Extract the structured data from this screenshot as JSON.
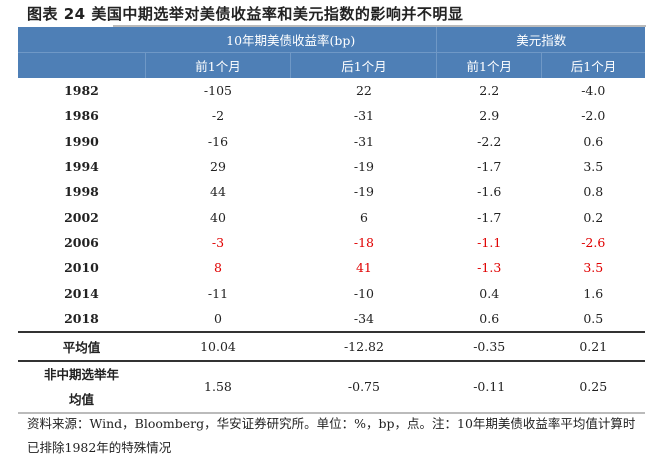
{
  "title": "图表 24 美国中期选举对美债收益率和美元指数的影响并不明显",
  "header": {
    "group1": "10年期美债收益率(bp)",
    "group2": "美元指数",
    "sub": [
      "前1个月",
      "后1个月",
      "前1个月",
      "后1个月"
    ]
  },
  "rows": [
    {
      "year": "1982",
      "v": [
        "-105",
        "22",
        "2.2",
        "-4.0"
      ],
      "highlight": false
    },
    {
      "year": "1986",
      "v": [
        "-2",
        "-31",
        "2.9",
        "-2.0"
      ],
      "highlight": false
    },
    {
      "year": "1990",
      "v": [
        "-16",
        "-31",
        "-2.2",
        "0.6"
      ],
      "highlight": false
    },
    {
      "year": "1994",
      "v": [
        "29",
        "-19",
        "-1.7",
        "3.5"
      ],
      "highlight": false
    },
    {
      "year": "1998",
      "v": [
        "44",
        "-19",
        "-1.6",
        "0.8"
      ],
      "highlight": false
    },
    {
      "year": "2002",
      "v": [
        "40",
        "6",
        "-1.7",
        "0.2"
      ],
      "highlight": false
    },
    {
      "year": "2006",
      "v": [
        "-3",
        "-18",
        "-1.1",
        "-2.6"
      ],
      "highlight": true
    },
    {
      "year": "2010",
      "v": [
        "8",
        "41",
        "-1.3",
        "3.5"
      ],
      "highlight": true
    },
    {
      "year": "2014",
      "v": [
        "-11",
        "-10",
        "0.4",
        "1.6"
      ],
      "highlight": false
    },
    {
      "year": "2018",
      "v": [
        "0",
        "-34",
        "0.6",
        "0.5"
      ],
      "highlight": false
    }
  ],
  "average": {
    "label": "平均值",
    "v": [
      "10.04",
      "-12.82",
      "-0.35",
      "0.21"
    ]
  },
  "non_midterm": {
    "label_line1": "非中期选举年",
    "label_line2": "均值",
    "v": [
      "1.58",
      "-0.75",
      "-0.11",
      "0.25"
    ]
  },
  "footnote": "资料来源：Wind，Bloomberg，华安证券研究所。单位：%，bp，点。注：10年期美债收益率平均值计算时已排除1982年的特殊情况",
  "colors": {
    "header_bg": "#4e7fb6",
    "highlight": "#e00000"
  }
}
